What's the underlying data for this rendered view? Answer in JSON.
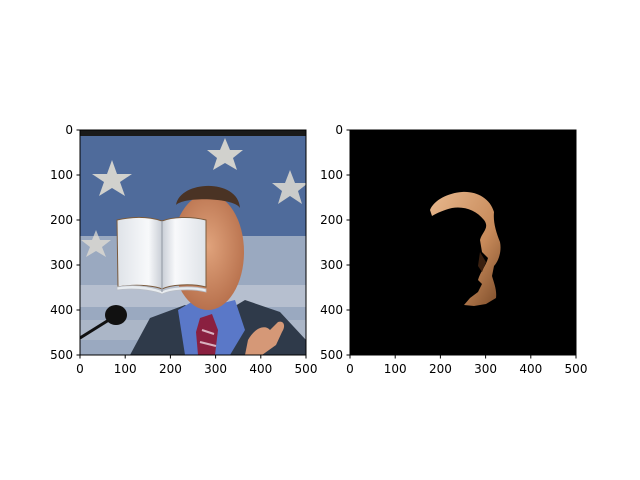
{
  "figure": {
    "background": "#ffffff",
    "axis_color": "#000000"
  },
  "panels": [
    {
      "name": "left-panel",
      "content": "photo of man at podium with flag background; an open book image pasted over his face",
      "xlim": [
        0,
        500
      ],
      "ylim": [
        500,
        0
      ],
      "xticks": [
        0,
        100,
        200,
        300,
        400,
        500
      ],
      "yticks": [
        0,
        100,
        200,
        300,
        400,
        500
      ]
    },
    {
      "name": "right-panel",
      "content": "black mask with a skin-colored segmented face region",
      "background": "#000000",
      "xlim": [
        0,
        500
      ],
      "ylim": [
        500,
        0
      ],
      "xticks": [
        0,
        100,
        200,
        300,
        400,
        500
      ],
      "yticks": [
        0,
        100,
        200,
        300,
        400,
        500
      ]
    }
  ]
}
